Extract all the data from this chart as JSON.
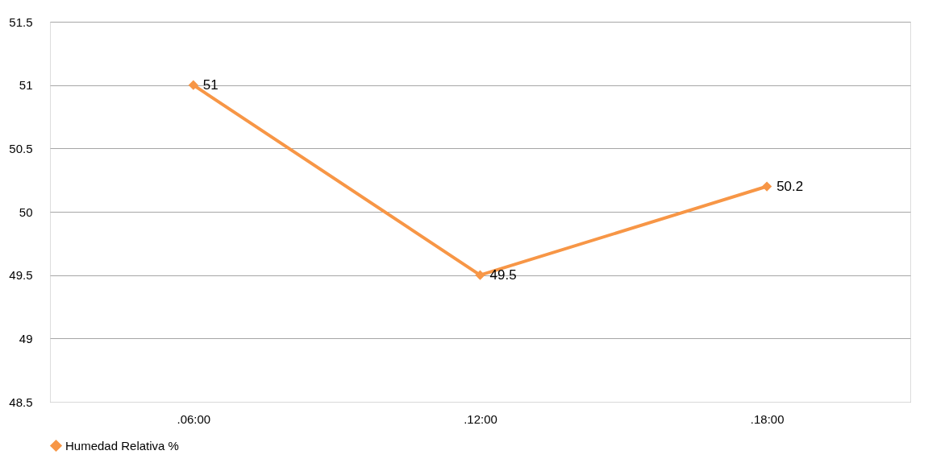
{
  "chart_data": {
    "type": "line",
    "categories": [
      ".06:00",
      ".12:00",
      ".18:00"
    ],
    "series": [
      {
        "name": "Humedad Relativa %",
        "color": "#f79646",
        "values": [
          51,
          49.5,
          50.2
        ]
      }
    ],
    "ylim": [
      48.5,
      51.5
    ],
    "yticks": [
      48.5,
      49,
      49.5,
      50,
      50.5,
      51,
      51.5
    ],
    "grid": "y",
    "legend": "bottom",
    "marker": "diamond",
    "line_style": "solid",
    "data_labels": true
  }
}
